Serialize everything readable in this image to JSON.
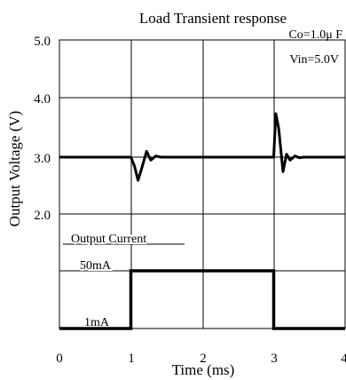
{
  "chart_data": {
    "type": "line",
    "title": "Load Transient response",
    "xlabel": "Time (ms)",
    "ylabel": "Output  Voltage (V)",
    "xlim": [
      0,
      4
    ],
    "ylim": [
      0,
      5
    ],
    "x_ticks": [
      "0",
      "1",
      "2",
      "3",
      "4"
    ],
    "y_ticks": [
      "5.0",
      "4.0",
      "3.0",
      "2.0"
    ],
    "y_tick_values": [
      5,
      4,
      3,
      2
    ],
    "grid": true,
    "annotations": {
      "capacitance": "Co=1.0μ F",
      "vin": "Vin=5.0V",
      "current_label": "Output Current",
      "current_high": "50mA",
      "current_low": "1mA"
    },
    "series": [
      {
        "name": "Output Voltage",
        "x": [
          0,
          1.0,
          1.05,
          1.1,
          1.15,
          1.22,
          1.28,
          1.35,
          1.42,
          1.5,
          3.0,
          3.03,
          3.07,
          3.13,
          3.18,
          3.23,
          3.3,
          3.36,
          3.42,
          3.5,
          4.0
        ],
        "y": [
          3.0,
          3.0,
          2.85,
          2.6,
          2.8,
          3.1,
          2.95,
          3.02,
          3.0,
          3.0,
          3.0,
          3.75,
          3.5,
          2.75,
          3.05,
          2.95,
          3.02,
          2.99,
          3.0,
          3.0,
          3.0
        ]
      },
      {
        "name": "Output Current",
        "x": [
          0,
          1.0,
          1.0,
          3.0,
          3.0,
          4.0
        ],
        "y": [
          0,
          0,
          1,
          1,
          0,
          0
        ],
        "levels": [
          "1mA",
          "50mA"
        ]
      }
    ]
  }
}
